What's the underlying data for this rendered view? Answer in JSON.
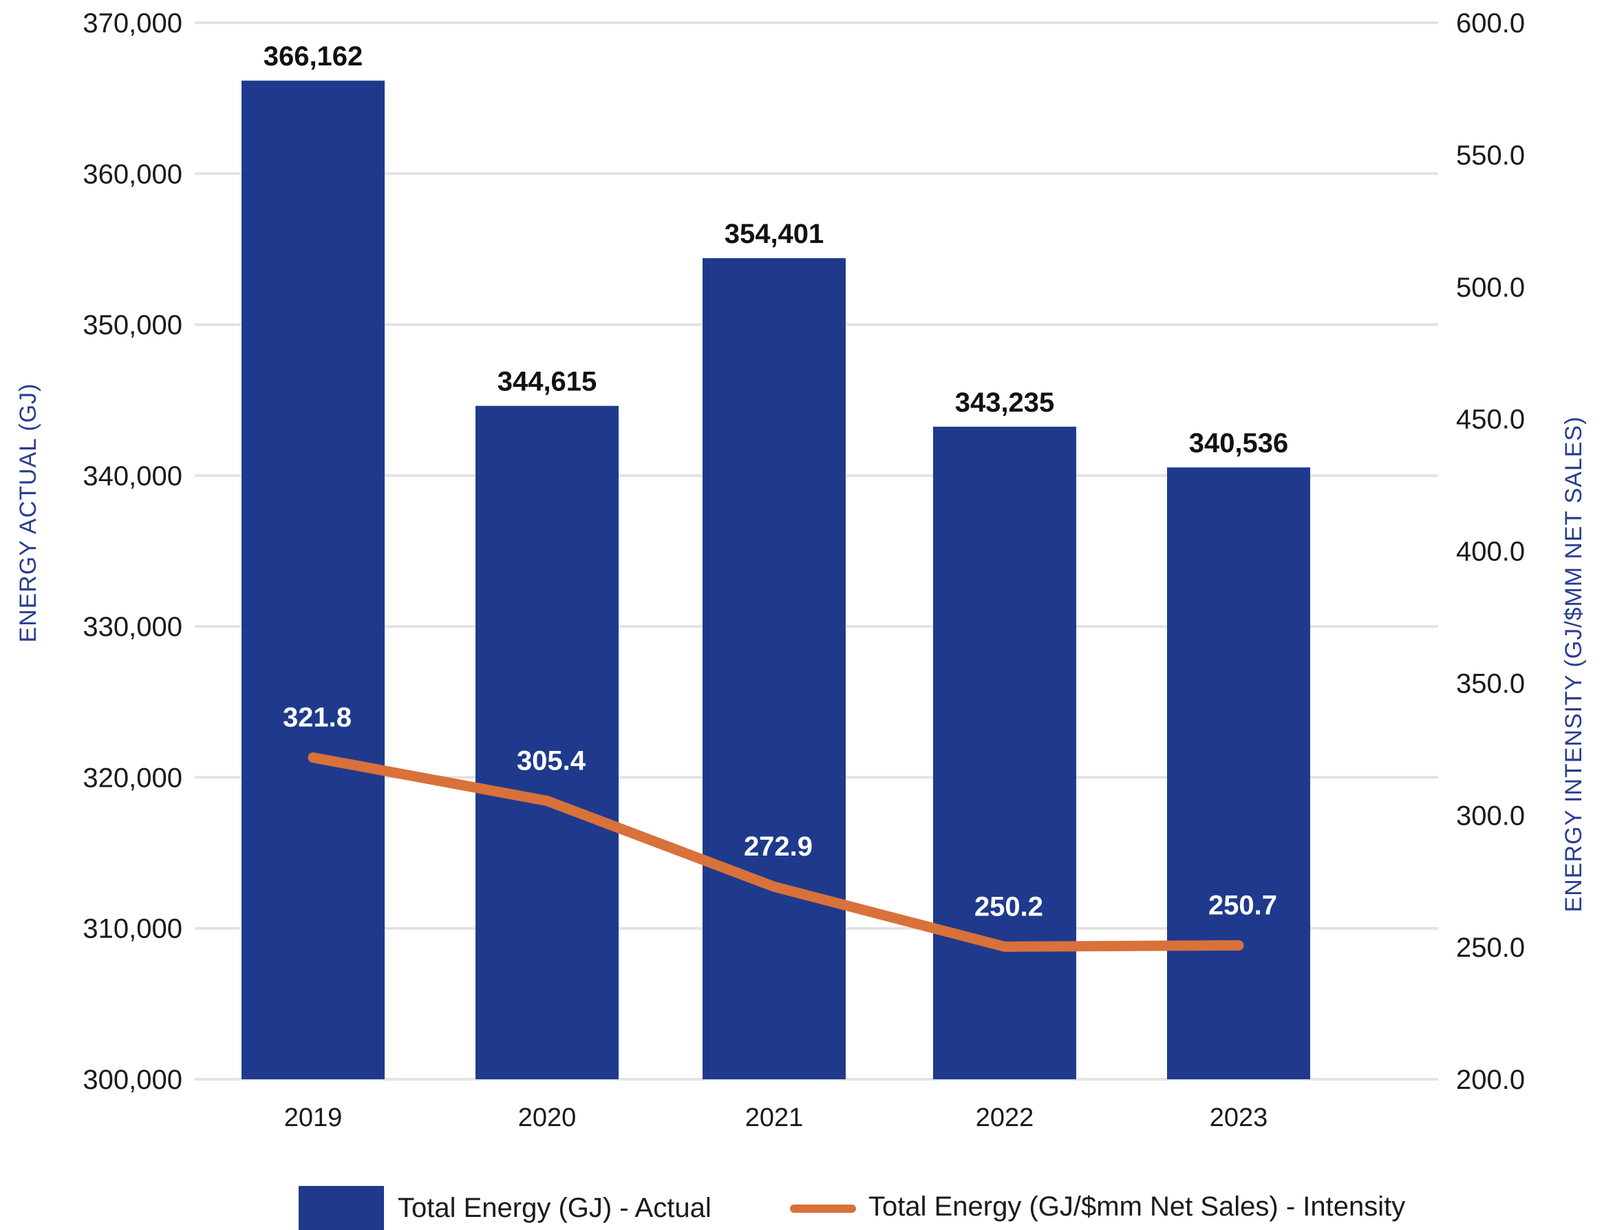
{
  "chart_data": {
    "type": "bar",
    "categories": [
      "2019",
      "2020",
      "2021",
      "2022",
      "2023"
    ],
    "series": [
      {
        "name": "Total Energy (GJ) - Actual",
        "type": "bar",
        "axis": "left",
        "values": [
          366162,
          344615,
          354401,
          343235,
          340536
        ],
        "labels": [
          "366,162",
          "344,615",
          "354,401",
          "343,235",
          "340,536"
        ],
        "color": "#1f3a8c"
      },
      {
        "name": "Total Energy (GJ/$mm Net Sales) - Intensity",
        "type": "line",
        "axis": "right",
        "values": [
          321.8,
          305.4,
          272.9,
          250.2,
          250.7
        ],
        "labels": [
          "321.8",
          "305.4",
          "272.9",
          "250.2",
          "250.7"
        ],
        "color": "#d9713a"
      }
    ],
    "ylabel_left": "ENERGY ACTUAL (GJ)",
    "ylabel_right": "ENERGY INTENSITY (GJ/$MM NET SALES)",
    "ylim_left": [
      300000,
      370000
    ],
    "ylim_right": [
      200,
      600
    ],
    "left_ticks": [
      {
        "value": 370000,
        "label": "370,000"
      },
      {
        "value": 360000,
        "label": "360,000"
      },
      {
        "value": 350000,
        "label": "350,000"
      },
      {
        "value": 340000,
        "label": "340,000"
      },
      {
        "value": 330000,
        "label": "330,000"
      },
      {
        "value": 320000,
        "label": "320,000"
      },
      {
        "value": 310000,
        "label": "310,000"
      },
      {
        "value": 300000,
        "label": "300,000"
      }
    ],
    "right_ticks": [
      {
        "value": 600,
        "label": "600.0"
      },
      {
        "value": 550,
        "label": "550.0"
      },
      {
        "value": 500,
        "label": "500.0"
      },
      {
        "value": 450,
        "label": "450.0"
      },
      {
        "value": 400,
        "label": "400.0"
      },
      {
        "value": 350,
        "label": "350.0"
      },
      {
        "value": 300,
        "label": "300.0"
      },
      {
        "value": 250,
        "label": "250.0"
      },
      {
        "value": 200,
        "label": "200.0"
      }
    ],
    "grid": true,
    "legend": "bottom"
  }
}
